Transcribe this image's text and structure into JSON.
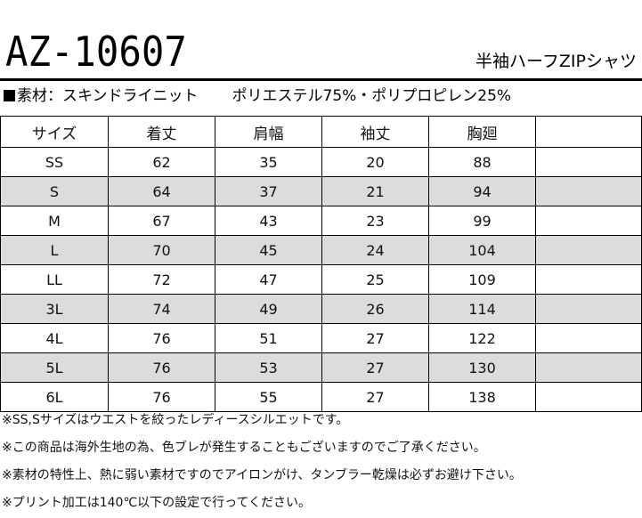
{
  "header": {
    "model": "AZ-10607",
    "subtitle": "半袖ハーフZIPシャツ",
    "material_label": "素材：スキンドライニット",
    "material_composition": "ポリエステル75%・ポリプロピレン25%"
  },
  "table": {
    "columns": [
      "サイズ",
      "着丈",
      "肩幅",
      "袖丈",
      "胸廻",
      ""
    ],
    "rows": [
      {
        "size": "SS",
        "length": "62",
        "shoulder": "35",
        "sleeve": "20",
        "chest": "88",
        "extra": ""
      },
      {
        "size": "S",
        "length": "64",
        "shoulder": "37",
        "sleeve": "21",
        "chest": "94",
        "extra": ""
      },
      {
        "size": "M",
        "length": "67",
        "shoulder": "43",
        "sleeve": "23",
        "chest": "99",
        "extra": ""
      },
      {
        "size": "L",
        "length": "70",
        "shoulder": "45",
        "sleeve": "24",
        "chest": "104",
        "extra": ""
      },
      {
        "size": "LL",
        "length": "72",
        "shoulder": "47",
        "sleeve": "25",
        "chest": "109",
        "extra": ""
      },
      {
        "size": "3L",
        "length": "74",
        "shoulder": "49",
        "sleeve": "26",
        "chest": "114",
        "extra": ""
      },
      {
        "size": "4L",
        "length": "76",
        "shoulder": "51",
        "sleeve": "27",
        "chest": "122",
        "extra": ""
      },
      {
        "size": "5L",
        "length": "76",
        "shoulder": "53",
        "sleeve": "27",
        "chest": "130",
        "extra": ""
      },
      {
        "size": "6L",
        "length": "76",
        "shoulder": "55",
        "sleeve": "27",
        "chest": "138",
        "extra": ""
      }
    ],
    "shade_color": "#dcdcdc"
  },
  "notes": [
    "※SS,Sサイズはウエストを絞ったレディースシルエットです。",
    "※この商品は海外生地の為、色ブレが発生することもございますのでご了承ください。",
    "※素材の特性上、熱に弱い素材ですのでアイロンがけ、タンブラー乾燥は必ずお避け下さい。",
    "※プリント加工は140℃以下の設定で行ってください。"
  ]
}
